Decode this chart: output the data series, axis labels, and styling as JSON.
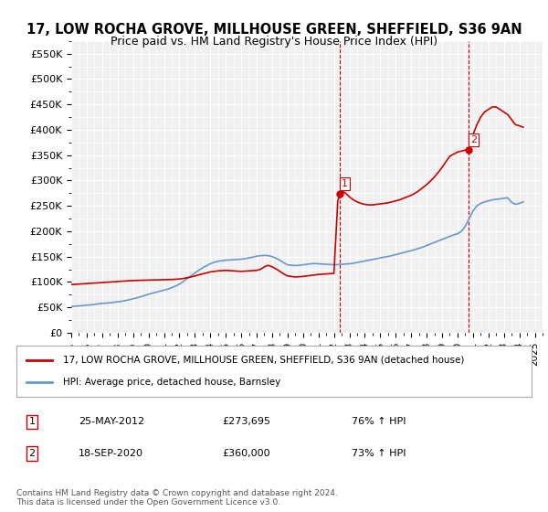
{
  "title_line1": "17, LOW ROCHA GROVE, MILLHOUSE GREEN, SHEFFIELD, S36 9AN",
  "title_line2": "Price paid vs. HM Land Registry's House Price Index (HPI)",
  "ylabel": "",
  "background_color": "#ffffff",
  "plot_bg_color": "#f0f0f0",
  "grid_color": "#ffffff",
  "red_color": "#cc0000",
  "blue_color": "#6699cc",
  "marker1_year": 2012.4,
  "marker1_value": 273695,
  "marker2_year": 2020.72,
  "marker2_value": 360000,
  "annotation1": [
    "1",
    "25-MAY-2012",
    "£273,695",
    "76% ↑ HPI"
  ],
  "annotation2": [
    "2",
    "18-SEP-2020",
    "£360,000",
    "73% ↑ HPI"
  ],
  "legend1": "17, LOW ROCHA GROVE, MILLHOUSE GREEN, SHEFFIELD, S36 9AN (detached house)",
  "legend2": "HPI: Average price, detached house, Barnsley",
  "footer": "Contains HM Land Registry data © Crown copyright and database right 2024.\nThis data is licensed under the Open Government Licence v3.0.",
  "ylim": [
    0,
    575000
  ],
  "yticks": [
    0,
    50000,
    100000,
    150000,
    200000,
    250000,
    300000,
    350000,
    400000,
    450000,
    500000,
    550000
  ],
  "hpi_years": [
    1995,
    1995.25,
    1995.5,
    1995.75,
    1996,
    1996.25,
    1996.5,
    1996.75,
    1997,
    1997.25,
    1997.5,
    1997.75,
    1998,
    1998.25,
    1998.5,
    1998.75,
    1999,
    1999.25,
    1999.5,
    1999.75,
    2000,
    2000.25,
    2000.5,
    2000.75,
    2001,
    2001.25,
    2001.5,
    2001.75,
    2002,
    2002.25,
    2002.5,
    2002.75,
    2003,
    2003.25,
    2003.5,
    2003.75,
    2004,
    2004.25,
    2004.5,
    2004.75,
    2005,
    2005.25,
    2005.5,
    2005.75,
    2006,
    2006.25,
    2006.5,
    2006.75,
    2007,
    2007.25,
    2007.5,
    2007.75,
    2008,
    2008.25,
    2008.5,
    2008.75,
    2009,
    2009.25,
    2009.5,
    2009.75,
    2010,
    2010.25,
    2010.5,
    2010.75,
    2011,
    2011.25,
    2011.5,
    2011.75,
    2012,
    2012.25,
    2012.5,
    2012.75,
    2013,
    2013.25,
    2013.5,
    2013.75,
    2014,
    2014.25,
    2014.5,
    2014.75,
    2015,
    2015.25,
    2015.5,
    2015.75,
    2016,
    2016.25,
    2016.5,
    2016.75,
    2017,
    2017.25,
    2017.5,
    2017.75,
    2018,
    2018.25,
    2018.5,
    2018.75,
    2019,
    2019.25,
    2019.5,
    2019.75,
    2020,
    2020.25,
    2020.5,
    2020.75,
    2021,
    2021.25,
    2021.5,
    2021.75,
    2022,
    2022.25,
    2022.5,
    2022.75,
    2023,
    2023.25,
    2023.5,
    2023.75,
    2024,
    2024.25
  ],
  "hpi_values": [
    52000,
    52500,
    53000,
    53500,
    54500,
    55000,
    56000,
    57000,
    58000,
    58500,
    59000,
    60000,
    61000,
    62000,
    63500,
    65000,
    67000,
    69000,
    71000,
    73500,
    76000,
    78000,
    80000,
    82000,
    84000,
    86000,
    89000,
    92000,
    96000,
    101000,
    107000,
    112000,
    118000,
    123000,
    128000,
    132000,
    136000,
    139000,
    141000,
    142000,
    143000,
    143500,
    144000,
    144500,
    145000,
    146000,
    147500,
    149000,
    151000,
    152000,
    152500,
    152000,
    150000,
    147000,
    143000,
    138000,
    134000,
    133000,
    132500,
    133000,
    134000,
    135000,
    136000,
    136500,
    136000,
    135500,
    135000,
    134500,
    134000,
    134500,
    135000,
    135500,
    136000,
    137000,
    138500,
    140000,
    141500,
    143000,
    144500,
    146000,
    147500,
    149000,
    150500,
    152000,
    154000,
    156000,
    158000,
    160000,
    162000,
    164000,
    166500,
    169000,
    172000,
    175000,
    178000,
    181000,
    184000,
    187000,
    190000,
    193000,
    195000,
    200000,
    210000,
    225000,
    240000,
    250000,
    255000,
    258000,
    260000,
    262000,
    263000,
    264000,
    265000,
    266000,
    257000,
    253000,
    255000,
    258000
  ],
  "price_years": [
    1995,
    1995.25,
    1995.5,
    1995.75,
    1996,
    1996.25,
    1996.5,
    1996.75,
    1997,
    1997.25,
    1997.5,
    1997.75,
    1998,
    1998.25,
    1998.5,
    1998.75,
    1999,
    1999.25,
    1999.5,
    1999.75,
    2000,
    2000.25,
    2000.5,
    2000.75,
    2001,
    2001.25,
    2001.5,
    2001.75,
    2002,
    2002.25,
    2002.5,
    2002.75,
    2003,
    2003.25,
    2003.5,
    2003.75,
    2004,
    2004.25,
    2004.5,
    2004.75,
    2005,
    2005.25,
    2005.5,
    2005.75,
    2006,
    2006.25,
    2006.5,
    2006.75,
    2007,
    2007.25,
    2007.5,
    2007.75,
    2008,
    2008.25,
    2008.5,
    2008.75,
    2009,
    2009.25,
    2009.5,
    2009.75,
    2010,
    2010.25,
    2010.5,
    2010.75,
    2011,
    2011.25,
    2011.5,
    2011.75,
    2012,
    2012.25,
    2012.5,
    2012.75,
    2013,
    2013.25,
    2013.5,
    2013.75,
    2014,
    2014.25,
    2014.5,
    2014.75,
    2015,
    2015.25,
    2015.5,
    2015.75,
    2016,
    2016.25,
    2016.5,
    2016.75,
    2017,
    2017.25,
    2017.5,
    2017.75,
    2018,
    2018.25,
    2018.5,
    2018.75,
    2019,
    2019.25,
    2019.5,
    2019.75,
    2020,
    2020.25,
    2020.5,
    2020.75,
    2021,
    2021.25,
    2021.5,
    2021.75,
    2022,
    2022.25,
    2022.5,
    2022.75,
    2023,
    2023.25,
    2023.5,
    2023.75,
    2024,
    2024.25
  ],
  "price_values": [
    95000,
    95500,
    96000,
    96500,
    97000,
    97500,
    98000,
    98500,
    99000,
    99500,
    100000,
    100500,
    101000,
    101500,
    102000,
    102500,
    103000,
    103200,
    103400,
    103600,
    103800,
    104000,
    104200,
    104400,
    104600,
    104800,
    105000,
    105500,
    106000,
    107000,
    108500,
    110000,
    112000,
    114000,
    116000,
    118000,
    120000,
    121000,
    122000,
    122500,
    123000,
    122500,
    122000,
    121500,
    121000,
    121500,
    122000,
    122500,
    123000,
    125000,
    130000,
    133000,
    130000,
    126000,
    121000,
    116000,
    112000,
    111000,
    110000,
    110500,
    111000,
    112000,
    113000,
    114000,
    115000,
    115500,
    116000,
    116500,
    117000,
    260000,
    280000,
    275000,
    268000,
    262000,
    258000,
    255000,
    253000,
    252000,
    252000,
    253000,
    254000,
    255000,
    256000,
    258000,
    260000,
    262000,
    265000,
    268000,
    271000,
    275000,
    280000,
    286000,
    292000,
    299000,
    307000,
    316000,
    326000,
    337000,
    348000,
    352000,
    356000,
    358000,
    360000,
    362000,
    390000,
    410000,
    425000,
    435000,
    440000,
    445000,
    445000,
    440000,
    435000,
    430000,
    420000,
    410000,
    408000,
    405000
  ],
  "xlim": [
    1995,
    2025.5
  ],
  "xtick_years": [
    1995,
    1996,
    1997,
    1998,
    1999,
    2000,
    2001,
    2002,
    2003,
    2004,
    2005,
    2006,
    2007,
    2008,
    2009,
    2010,
    2011,
    2012,
    2013,
    2014,
    2015,
    2016,
    2017,
    2018,
    2019,
    2020,
    2021,
    2022,
    2023,
    2024,
    2025
  ]
}
